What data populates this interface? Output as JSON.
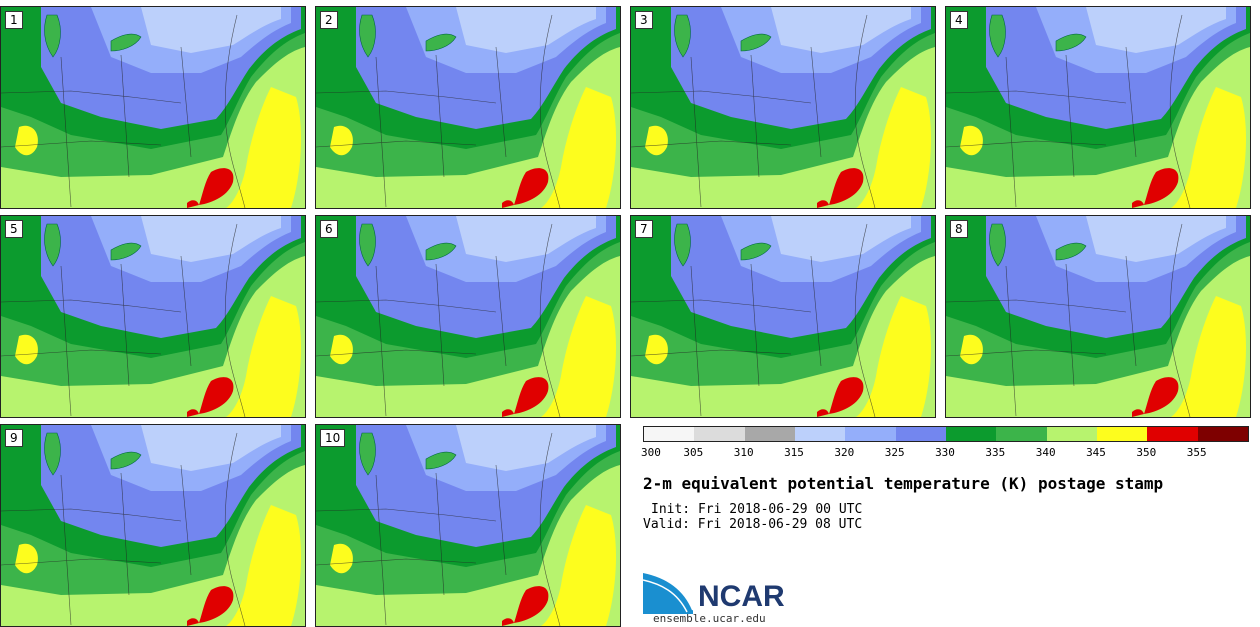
{
  "panels": [
    {
      "label": "1"
    },
    {
      "label": "2"
    },
    {
      "label": "3"
    },
    {
      "label": "4"
    },
    {
      "label": "5"
    },
    {
      "label": "6"
    },
    {
      "label": "7"
    },
    {
      "label": "8"
    },
    {
      "label": "9"
    },
    {
      "label": "10"
    }
  ],
  "colorbar": {
    "colors": [
      "#f6f6f6",
      "#dcdcdc",
      "#a8a8a8",
      "#bcd0fb",
      "#94aefa",
      "#7386ef",
      "#0c9b2e",
      "#3cb44a",
      "#b7f36e",
      "#fdfd1e",
      "#e00000",
      "#7e0000"
    ],
    "ticks": [
      "300",
      "305",
      "310",
      "315",
      "320",
      "325",
      "330",
      "335",
      "340",
      "345",
      "350",
      "355"
    ]
  },
  "title": "2-m equivalent potential temperature (K) postage stamp",
  "init": "Init: Fri 2018-06-29 00 UTC",
  "valid": "Valid: Fri 2018-06-29 08 UTC",
  "logo_text": "NCAR",
  "site": "ensemble.ucar.edu"
}
